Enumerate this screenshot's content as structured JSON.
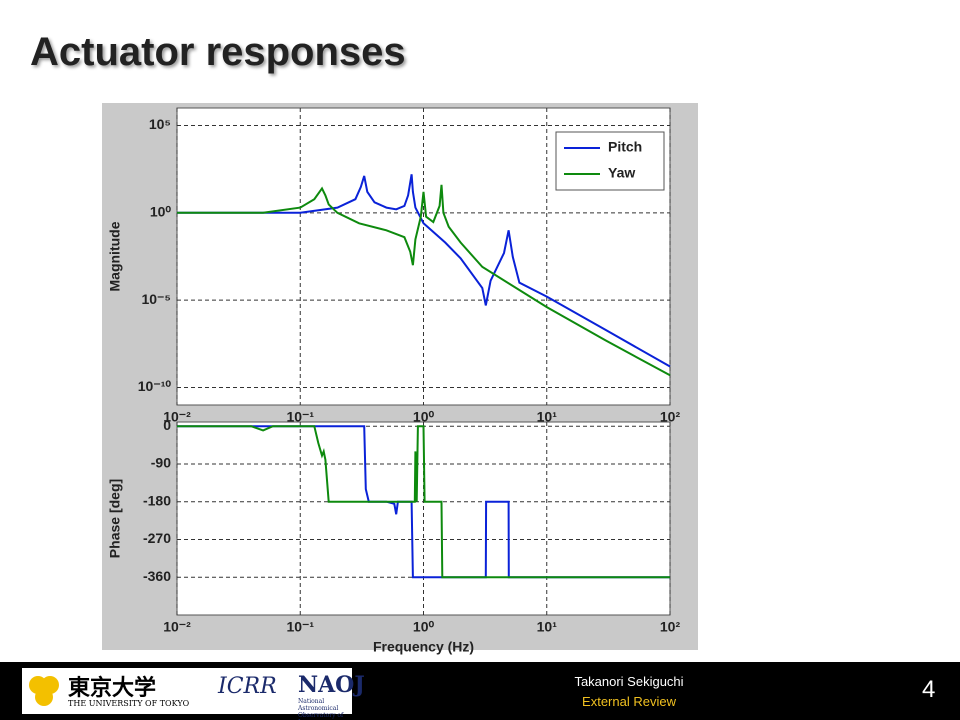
{
  "slide": {
    "title": "Actuator responses",
    "author": "Takanori Sekiguchi",
    "event": "External Review",
    "page": "4",
    "logos": [
      "東京大学",
      "THE UNIVERSITY OF TOKYO",
      "ICRR",
      "NAOJ",
      "National Astronomical Observatory of Japan"
    ]
  },
  "chart_data": [
    {
      "type": "line",
      "ylabel": "Magnitude",
      "xlog": true,
      "ylog": true,
      "grid": true,
      "legend": "upper right",
      "xlim": [
        0.01,
        100
      ],
      "ylim": [
        1e-11,
        1000000.0
      ],
      "xticks": [
        {
          "value": 0.01,
          "label": "10⁻²"
        },
        {
          "value": 0.1,
          "label": "10⁻¹"
        },
        {
          "value": 1,
          "label": "10⁰"
        },
        {
          "value": 10,
          "label": "10¹"
        },
        {
          "value": 100,
          "label": "10²"
        }
      ],
      "yticks": [
        {
          "value": 1e-10,
          "label": "10⁻¹⁰"
        },
        {
          "value": 1e-05,
          "label": "10⁻⁵"
        },
        {
          "value": 1,
          "label": "10⁰"
        },
        {
          "value": 100000,
          "label": "10⁵"
        }
      ],
      "series": [
        {
          "name": "Pitch",
          "color": "#0a22d8",
          "x": [
            0.01,
            0.1,
            0.2,
            0.28,
            0.31,
            0.33,
            0.35,
            0.4,
            0.5,
            0.6,
            0.7,
            0.75,
            0.8,
            0.82,
            0.86,
            1,
            1.5,
            2,
            3,
            3.2,
            3.5,
            4.5,
            4.9,
            5.3,
            6,
            10,
            30,
            100
          ],
          "values": [
            1,
            1,
            2,
            6,
            30,
            130,
            16,
            4,
            2,
            1.6,
            2.5,
            10,
            160,
            16,
            2,
            0.25,
            0.02,
            0.0025,
            5e-05,
            5e-06,
            0.00013,
            0.005,
            0.1,
            0.003,
            0.0001,
            1.6e-05,
            2e-07,
            1.6e-09
          ]
        },
        {
          "name": "Yaw",
          "color": "#0e8a0e",
          "x": [
            0.01,
            0.05,
            0.1,
            0.13,
            0.15,
            0.16,
            0.17,
            0.2,
            0.3,
            0.5,
            0.7,
            0.78,
            0.82,
            0.86,
            0.95,
            1.0,
            1.05,
            1.2,
            1.35,
            1.4,
            1.45,
            1.6,
            2,
            3,
            10,
            30,
            100
          ],
          "values": [
            1,
            1,
            2,
            6,
            25,
            10,
            3,
            1,
            0.25,
            0.1,
            0.04,
            0.006,
            0.001,
            0.03,
            0.6,
            16,
            0.6,
            0.3,
            2.5,
            40,
            1,
            0.16,
            0.02,
            0.0008,
            4e-06,
            5e-08,
            5e-10
          ]
        }
      ]
    },
    {
      "type": "line",
      "xlabel": "Frequency (Hz)",
      "ylabel": "Phase [deg]",
      "xlog": true,
      "ylog": false,
      "grid": true,
      "xlim": [
        0.01,
        100
      ],
      "ylim": [
        -450,
        10
      ],
      "xticks": [
        {
          "value": 0.01,
          "label": "10⁻²"
        },
        {
          "value": 0.1,
          "label": "10⁻¹"
        },
        {
          "value": 1,
          "label": "10⁰"
        },
        {
          "value": 10,
          "label": "10¹"
        },
        {
          "value": 100,
          "label": "10²"
        }
      ],
      "yticks": [
        -360,
        -270,
        -180,
        -90,
        0
      ],
      "series": [
        {
          "color": "#0a22d8",
          "x": [
            0.01,
            0.33,
            0.34,
            0.36,
            0.5,
            0.58,
            0.6,
            0.62,
            0.8,
            0.82,
            0.84,
            1,
            3.2,
            3.22,
            4.9,
            4.92,
            100
          ],
          "values": [
            0,
            0,
            -150,
            -180,
            -180,
            -185,
            -210,
            -180,
            -180,
            -360,
            -360,
            -360,
            -360,
            -180,
            -180,
            -360,
            -360
          ]
        },
        {
          "color": "#0e8a0e",
          "x": [
            0.01,
            0.04,
            0.05,
            0.06,
            0.13,
            0.14,
            0.15,
            0.155,
            0.16,
            0.17,
            0.85,
            0.86,
            0.88,
            0.9,
            0.95,
            1.0,
            1.02,
            1.4,
            1.42,
            100
          ],
          "values": [
            0,
            0,
            -10,
            0,
            0,
            -40,
            -70,
            -60,
            -80,
            -180,
            -180,
            -60,
            -180,
            0,
            0,
            0,
            -180,
            -180,
            -360,
            -360
          ]
        }
      ]
    }
  ]
}
